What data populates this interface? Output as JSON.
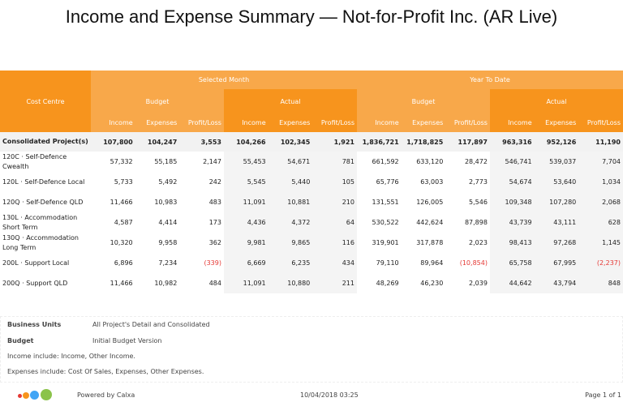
{
  "title": "Income and Expense Summary — Not-for-Profit Inc. (AR Live)",
  "headers": {
    "cost_centre": "Cost Centre",
    "selected_month": "Selected Month",
    "year_to_date": "Year To Date",
    "budget": "Budget",
    "actual": "Actual",
    "income": "Income",
    "expenses": "Expenses",
    "profit_loss": "Profit/Loss"
  },
  "rows": [
    {
      "name": "Consolidated Project(s)",
      "values": [
        "107,800",
        "104,247",
        "3,553",
        "104,266",
        "102,345",
        "1,921",
        "1,836,721",
        "1,718,825",
        "117,897",
        "963,316",
        "952,126",
        "11,190"
      ],
      "bold": true
    },
    {
      "name": "120C · Self-Defence Cwealth",
      "values": [
        "57,332",
        "55,185",
        "2,147",
        "55,453",
        "54,671",
        "781",
        "661,592",
        "633,120",
        "28,472",
        "546,741",
        "539,037",
        "7,704"
      ]
    },
    {
      "name": "120L · Self-Defence Local",
      "values": [
        "5,733",
        "5,492",
        "242",
        "5,545",
        "5,440",
        "105",
        "65,776",
        "63,003",
        "2,773",
        "54,674",
        "53,640",
        "1,034"
      ]
    },
    {
      "name": "120Q · Self-Defence QLD",
      "values": [
        "11,466",
        "10,983",
        "483",
        "11,091",
        "10,881",
        "210",
        "131,551",
        "126,005",
        "5,546",
        "109,348",
        "107,280",
        "2,068"
      ]
    },
    {
      "name": "130L · Accommodation Short Term",
      "values": [
        "4,587",
        "4,414",
        "173",
        "4,436",
        "4,372",
        "64",
        "530,522",
        "442,624",
        "87,898",
        "43,739",
        "43,111",
        "628"
      ]
    },
    {
      "name": "130Q · Accommodation Long Term",
      "values": [
        "10,320",
        "9,958",
        "362",
        "9,981",
        "9,865",
        "116",
        "319,901",
        "317,878",
        "2,023",
        "98,413",
        "97,268",
        "1,145"
      ]
    },
    {
      "name": "200L · Support Local",
      "values": [
        "6,896",
        "7,234",
        "(339)",
        "6,669",
        "6,235",
        "434",
        "79,110",
        "89,964",
        "(10,854)",
        "65,758",
        "67,995",
        "(2,237)"
      ]
    },
    {
      "name": "200Q · Support QLD",
      "values": [
        "11,466",
        "10,982",
        "484",
        "11,091",
        "10,880",
        "211",
        "48,269",
        "46,230",
        "2,039",
        "44,642",
        "43,794",
        "848"
      ]
    }
  ],
  "info": {
    "business_units_label": "Business Units",
    "business_units_value": "All Project's Detail and Consolidated",
    "budget_label": "Budget",
    "budget_value": "Initial Budget Version",
    "income_note": "Income include: Income,  Other Income.",
    "expenses_note": "Expenses include: Cost Of Sales,  Expenses,  Other Expenses."
  },
  "footer": {
    "powered_by": "Powered by Calxa",
    "timestamp": "10/04/2018 03:25",
    "page": "Page 1 of 1"
  },
  "colors": {
    "header_dark": "#f7941d",
    "header_light": "#f8a84a",
    "negative": "#e53935",
    "logo": [
      "#e53935",
      "#f7941d",
      "#42a5f5",
      "#8bc34a"
    ]
  }
}
